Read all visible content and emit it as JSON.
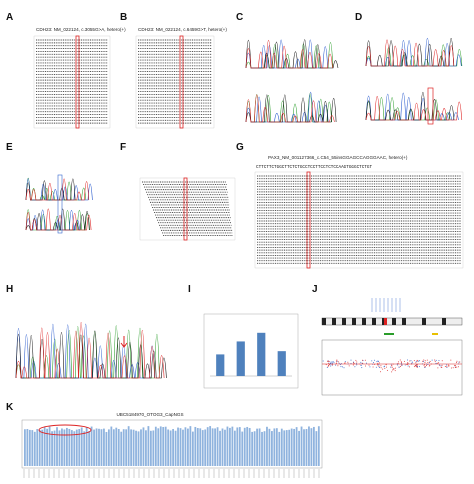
{
  "panels": {
    "a": {
      "label": "A",
      "caption": "CDH23: NM_022124, c.3055G>A, hetero(+)"
    },
    "b": {
      "label": "B",
      "caption": "CDH23: NM_022124, c.6459G>T, hetero(+)"
    },
    "c": {
      "label": "C"
    },
    "d": {
      "label": "D"
    },
    "e": {
      "label": "E"
    },
    "f": {
      "label": "F"
    },
    "g": {
      "label": "G",
      "caption": "PAX3_NM_001127366_c.C54_55insGGAGCCAGGGAAC, hetero(+)",
      "sequence": "CTTCTTCTGGCTTCTCTGCCTCCTTCCTCTCCAAGTGGGCTCTGT"
    },
    "h": {
      "label": "H"
    },
    "i": {
      "label": "I",
      "type": "bar",
      "values": [
        1.0,
        1.6,
        2.0,
        1.15
      ],
      "ylim": [
        0,
        2.5
      ],
      "color": "#4f81bd"
    },
    "j": {
      "label": "J"
    },
    "k": {
      "label": "K",
      "title": "UBC5184970_OTOG3_CapNGS"
    }
  }
}
